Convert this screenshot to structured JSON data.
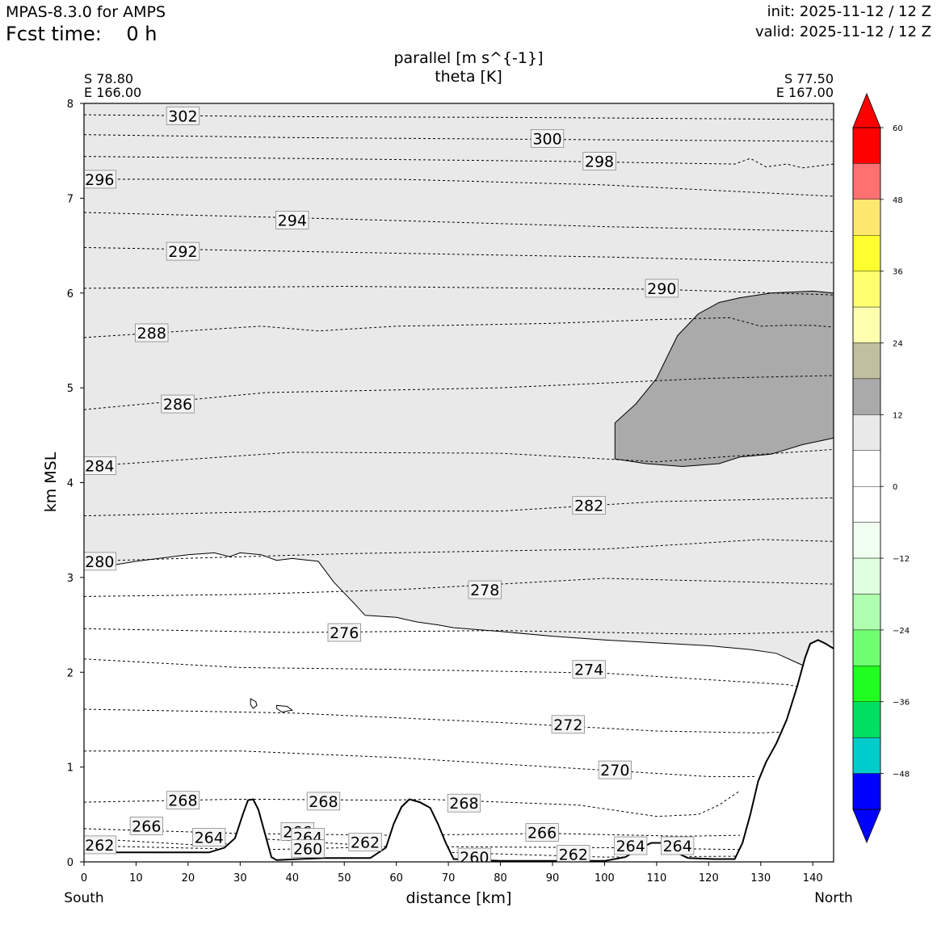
{
  "header": {
    "model": "MPAS-8.3.0 for AMPS",
    "fcst_label": "Fcst time:",
    "fcst_value": "0 h",
    "init": "init: 2025-11-12 / 12 Z",
    "valid": "valid: 2025-11-12 / 12 Z"
  },
  "titles": {
    "line1": "parallel [m s^{-1}]",
    "line2": "theta [K]"
  },
  "endpoints": {
    "left_lat": "S 78.80",
    "left_lon": "E 166.00",
    "right_lat": "S 77.50",
    "right_lon": "E 167.00",
    "left_dir": "South",
    "right_dir": "North"
  },
  "colors": {
    "shade_light": "#e9e9e9",
    "shade_dark": "#aaaaaa",
    "terrain_fill": "#ffffff"
  },
  "chart_data": {
    "type": "line",
    "xlabel": "distance [km]",
    "ylabel": "km MSL",
    "xlim": [
      0,
      144
    ],
    "ylim": [
      0,
      8
    ],
    "xticks": [
      0,
      10,
      20,
      30,
      40,
      50,
      60,
      70,
      80,
      90,
      100,
      110,
      120,
      130,
      140
    ],
    "yticks": [
      0,
      1,
      2,
      3,
      4,
      5,
      6,
      7,
      8
    ],
    "terrain_km": [
      [
        0,
        0.1
      ],
      [
        9,
        0.1
      ],
      [
        24,
        0.1
      ],
      [
        27,
        0.15
      ],
      [
        29,
        0.25
      ],
      [
        30.5,
        0.5
      ],
      [
        31.5,
        0.65
      ],
      [
        32.5,
        0.66
      ],
      [
        33.5,
        0.55
      ],
      [
        35,
        0.25
      ],
      [
        36,
        0.05
      ],
      [
        37,
        0.02
      ],
      [
        46,
        0.04
      ],
      [
        55,
        0.04
      ],
      [
        58,
        0.15
      ],
      [
        59.5,
        0.4
      ],
      [
        61,
        0.58
      ],
      [
        62.5,
        0.66
      ],
      [
        64.5,
        0.63
      ],
      [
        66.5,
        0.57
      ],
      [
        68,
        0.4
      ],
      [
        69.5,
        0.2
      ],
      [
        71,
        0.03
      ],
      [
        80,
        0.01
      ],
      [
        100,
        0.01
      ],
      [
        104,
        0.05
      ],
      [
        107,
        0.15
      ],
      [
        109,
        0.2
      ],
      [
        111,
        0.2
      ],
      [
        113,
        0.12
      ],
      [
        116,
        0.04
      ],
      [
        121,
        0.03
      ],
      [
        125,
        0.03
      ],
      [
        126.5,
        0.2
      ],
      [
        128,
        0.5
      ],
      [
        129.5,
        0.85
      ],
      [
        131,
        1.05
      ],
      [
        133,
        1.25
      ],
      [
        135,
        1.5
      ],
      [
        137,
        1.85
      ],
      [
        138.5,
        2.15
      ],
      [
        139.5,
        2.3
      ],
      [
        141,
        2.34
      ],
      [
        142.5,
        2.3
      ],
      [
        144,
        2.25
      ]
    ],
    "theta_contours": [
      {
        "value": 302,
        "points": [
          [
            0,
            7.88
          ],
          [
            40,
            7.86
          ],
          [
            90,
            7.85
          ],
          [
            144,
            7.83
          ]
        ]
      },
      {
        "value": 300,
        "points": [
          [
            0,
            7.67
          ],
          [
            40,
            7.64
          ],
          [
            90,
            7.62
          ],
          [
            144,
            7.6
          ]
        ]
      },
      {
        "value": 298,
        "points": [
          [
            0,
            7.44
          ],
          [
            40,
            7.42
          ],
          [
            90,
            7.39
          ],
          [
            125,
            7.36
          ],
          [
            128,
            7.42
          ],
          [
            131,
            7.33
          ],
          [
            135,
            7.36
          ],
          [
            138,
            7.32
          ],
          [
            144,
            7.36
          ]
        ]
      },
      {
        "value": 296,
        "points": [
          [
            0,
            7.2
          ],
          [
            60,
            7.2
          ],
          [
            100,
            7.14
          ],
          [
            144,
            7.02
          ]
        ]
      },
      {
        "value": 294,
        "points": [
          [
            0,
            6.85
          ],
          [
            50,
            6.78
          ],
          [
            100,
            6.7
          ],
          [
            144,
            6.65
          ]
        ]
      },
      {
        "value": 292,
        "points": [
          [
            0,
            6.48
          ],
          [
            50,
            6.43
          ],
          [
            100,
            6.38
          ],
          [
            144,
            6.32
          ]
        ]
      },
      {
        "value": 290,
        "points": [
          [
            0,
            6.05
          ],
          [
            50,
            6.07
          ],
          [
            110,
            6.04
          ],
          [
            144,
            5.98
          ]
        ]
      },
      {
        "value": 288,
        "points": [
          [
            0,
            5.53
          ],
          [
            25,
            5.62
          ],
          [
            34,
            5.65
          ],
          [
            45,
            5.6
          ],
          [
            60,
            5.65
          ],
          [
            70,
            5.66
          ],
          [
            90,
            5.68
          ],
          [
            110,
            5.72
          ],
          [
            124,
            5.74
          ],
          [
            130,
            5.65
          ],
          [
            135,
            5.66
          ],
          [
            140,
            5.66
          ],
          [
            144,
            5.64
          ]
        ]
      },
      {
        "value": 286,
        "points": [
          [
            0,
            4.77
          ],
          [
            35,
            4.95
          ],
          [
            80,
            5.0
          ],
          [
            120,
            5.1
          ],
          [
            144,
            5.13
          ]
        ]
      },
      {
        "value": 284,
        "points": [
          [
            0,
            4.17
          ],
          [
            40,
            4.32
          ],
          [
            80,
            4.31
          ],
          [
            110,
            4.22
          ],
          [
            125,
            4.28
          ],
          [
            144,
            4.35
          ]
        ]
      },
      {
        "value": 282,
        "points": [
          [
            0,
            3.65
          ],
          [
            40,
            3.7
          ],
          [
            80,
            3.7
          ],
          [
            110,
            3.8
          ],
          [
            144,
            3.84
          ]
        ]
      },
      {
        "value": 280,
        "points": [
          [
            0,
            3.17
          ],
          [
            50,
            3.25
          ],
          [
            100,
            3.3
          ],
          [
            130,
            3.4
          ],
          [
            144,
            3.38
          ]
        ]
      },
      {
        "value": 278,
        "points": [
          [
            0,
            2.8
          ],
          [
            30,
            2.82
          ],
          [
            60,
            2.87
          ],
          [
            100,
            2.99
          ],
          [
            144,
            2.93
          ]
        ]
      },
      {
        "value": 276,
        "points": [
          [
            0,
            2.46
          ],
          [
            40,
            2.42
          ],
          [
            80,
            2.44
          ],
          [
            120,
            2.4
          ],
          [
            144,
            2.43
          ]
        ]
      },
      {
        "value": 274,
        "points": [
          [
            0,
            2.14
          ],
          [
            30,
            2.05
          ],
          [
            60,
            2.03
          ],
          [
            100,
            1.99
          ],
          [
            135,
            1.87
          ],
          [
            140,
            1.82
          ]
        ]
      },
      {
        "value": 272,
        "points": [
          [
            0,
            1.61
          ],
          [
            40,
            1.57
          ],
          [
            80,
            1.47
          ],
          [
            110,
            1.38
          ],
          [
            130,
            1.36
          ],
          [
            134,
            1.37
          ]
        ]
      },
      {
        "value": 270,
        "points": [
          [
            0,
            1.17
          ],
          [
            30,
            1.17
          ],
          [
            60,
            1.1
          ],
          [
            90,
            1.0
          ],
          [
            120,
            0.9
          ],
          [
            129,
            0.9
          ]
        ]
      },
      {
        "value": 268,
        "points": [
          [
            0,
            0.63
          ],
          [
            29,
            0.66
          ],
          [
            34,
            0.66
          ],
          [
            58,
            0.65
          ],
          [
            66,
            0.66
          ],
          [
            95,
            0.6
          ],
          [
            110,
            0.48
          ],
          [
            118,
            0.5
          ],
          [
            122,
            0.6
          ],
          [
            126,
            0.75
          ]
        ]
      },
      {
        "value": 266,
        "points": [
          [
            0,
            0.35
          ],
          [
            30,
            0.3
          ],
          [
            60,
            0.28
          ],
          [
            90,
            0.3
          ],
          [
            115,
            0.27
          ],
          [
            126,
            0.28
          ]
        ]
      },
      {
        "value": 264,
        "points": [
          [
            0,
            0.25
          ],
          [
            24,
            0.17
          ],
          [
            35,
            0.24
          ],
          [
            58,
            0.16
          ],
          [
            70,
            0.16
          ],
          [
            100,
            0.15
          ],
          [
            126,
            0.13
          ]
        ]
      },
      {
        "value": 262,
        "points": [
          [
            0,
            0.17
          ],
          [
            25,
            0.14
          ],
          [
            36,
            0.13
          ],
          [
            58,
            0.16
          ],
          [
            70,
            0.1
          ],
          [
            100,
            0.05
          ],
          [
            126,
            0.06
          ]
        ]
      }
    ],
    "labels": [
      {
        "text": "302",
        "x": 19,
        "y": 7.87
      },
      {
        "text": "300",
        "x": 89,
        "y": 7.63
      },
      {
        "text": "298",
        "x": 99,
        "y": 7.39
      },
      {
        "text": "296",
        "x": 3,
        "y": 7.2
      },
      {
        "text": "294",
        "x": 40,
        "y": 6.77
      },
      {
        "text": "292",
        "x": 19,
        "y": 6.44
      },
      {
        "text": "290",
        "x": 111,
        "y": 6.05
      },
      {
        "text": "288",
        "x": 13,
        "y": 5.58
      },
      {
        "text": "286",
        "x": 18,
        "y": 4.83
      },
      {
        "text": "284",
        "x": 3,
        "y": 4.18
      },
      {
        "text": "282",
        "x": 97,
        "y": 3.76
      },
      {
        "text": "280",
        "x": 3,
        "y": 3.17
      },
      {
        "text": "278",
        "x": 77,
        "y": 2.87
      },
      {
        "text": "276",
        "x": 50,
        "y": 2.42
      },
      {
        "text": "274",
        "x": 97,
        "y": 2.03
      },
      {
        "text": "272",
        "x": 93,
        "y": 1.45
      },
      {
        "text": "270",
        "x": 102,
        "y": 0.97
      },
      {
        "text": "268",
        "x": 19,
        "y": 0.65
      },
      {
        "text": "268",
        "x": 46,
        "y": 0.64
      },
      {
        "text": "268",
        "x": 73,
        "y": 0.62
      },
      {
        "text": "266",
        "x": 12,
        "y": 0.38
      },
      {
        "text": "266",
        "x": 41,
        "y": 0.32
      },
      {
        "text": "266",
        "x": 88,
        "y": 0.31
      },
      {
        "text": "264",
        "x": 24,
        "y": 0.26
      },
      {
        "text": "264",
        "x": 43,
        "y": 0.26
      },
      {
        "text": "264",
        "x": 105,
        "y": 0.17
      },
      {
        "text": "264",
        "x": 114,
        "y": 0.17
      },
      {
        "text": "262",
        "x": 3,
        "y": 0.18
      },
      {
        "text": "262",
        "x": 54,
        "y": 0.21
      },
      {
        "text": "262",
        "x": 94,
        "y": 0.08
      },
      {
        "text": "260",
        "x": 43,
        "y": 0.14
      },
      {
        "text": "260",
        "x": 75,
        "y": 0.05
      }
    ],
    "shading": {
      "light_region_top_km": 8,
      "light_lower_boundary": [
        [
          0,
          3.08
        ],
        [
          10,
          3.17
        ],
        [
          20,
          3.24
        ],
        [
          25,
          3.26
        ],
        [
          28,
          3.22
        ],
        [
          30,
          3.26
        ],
        [
          34,
          3.24
        ],
        [
          37,
          3.18
        ],
        [
          40,
          3.2
        ],
        [
          45,
          3.17
        ],
        [
          48,
          2.95
        ],
        [
          52,
          2.72
        ],
        [
          54,
          2.6
        ],
        [
          60,
          2.58
        ],
        [
          64,
          2.53
        ],
        [
          68,
          2.5
        ],
        [
          71,
          2.47
        ],
        [
          80,
          2.43
        ],
        [
          90,
          2.38
        ],
        [
          100,
          2.34
        ],
        [
          110,
          2.31
        ],
        [
          120,
          2.28
        ],
        [
          128,
          2.24
        ],
        [
          133,
          2.2
        ],
        [
          137,
          2.1
        ],
        [
          139,
          2.05
        ],
        [
          141,
          2.15
        ],
        [
          142.5,
          2.3
        ]
      ],
      "dark_region": [
        [
          102,
          4.63
        ],
        [
          106,
          4.83
        ],
        [
          110,
          5.1
        ],
        [
          114,
          5.55
        ],
        [
          118,
          5.78
        ],
        [
          122,
          5.9
        ],
        [
          126,
          5.95
        ],
        [
          132,
          6.0
        ],
        [
          140,
          6.02
        ],
        [
          144,
          6.0
        ],
        [
          144,
          4.47
        ],
        [
          138,
          4.4
        ],
        [
          132,
          4.3
        ],
        [
          126,
          4.27
        ],
        [
          122,
          4.2
        ],
        [
          115,
          4.17
        ],
        [
          108,
          4.2
        ],
        [
          102,
          4.25
        ]
      ],
      "small_contours": [
        [
          [
            32,
            1.72
          ],
          [
            33,
            1.69
          ],
          [
            33.2,
            1.65
          ],
          [
            32.5,
            1.62
          ],
          [
            32,
            1.66
          ],
          [
            32,
            1.72
          ]
        ],
        [
          [
            37,
            1.65
          ],
          [
            39,
            1.64
          ],
          [
            40,
            1.6
          ],
          [
            38,
            1.58
          ],
          [
            37,
            1.62
          ],
          [
            37,
            1.65
          ]
        ]
      ]
    },
    "colorbar": {
      "ticks": [
        60,
        48,
        36,
        24,
        12,
        0,
        -12,
        -24,
        -36,
        -48
      ],
      "tick_labels": [
        "60",
        "48",
        "36",
        "24",
        "12",
        "0",
        "−12",
        "−24",
        "−36",
        "−48"
      ],
      "bins": [
        {
          "lo": 54,
          "hi": 60,
          "color": "#ff0000"
        },
        {
          "lo": 48,
          "hi": 54,
          "color": "#ff7070"
        },
        {
          "lo": 42,
          "hi": 48,
          "color": "#ffe870"
        },
        {
          "lo": 36,
          "hi": 42,
          "color": "#ffff30"
        },
        {
          "lo": 30,
          "hi": 36,
          "color": "#ffff70"
        },
        {
          "lo": 24,
          "hi": 30,
          "color": "#ffffb0"
        },
        {
          "lo": 18,
          "hi": 24,
          "color": "#c0c0a0"
        },
        {
          "lo": 12,
          "hi": 18,
          "color": "#aaaaaa"
        },
        {
          "lo": 6,
          "hi": 12,
          "color": "#e9e9e9"
        },
        {
          "lo": 0,
          "hi": 6,
          "color": "#ffffff"
        },
        {
          "lo": -6,
          "hi": 0,
          "color": "#ffffff"
        },
        {
          "lo": -12,
          "hi": -6,
          "color": "#f0fff0"
        },
        {
          "lo": -18,
          "hi": -12,
          "color": "#e0ffe0"
        },
        {
          "lo": -24,
          "hi": -18,
          "color": "#b0ffb0"
        },
        {
          "lo": -30,
          "hi": -24,
          "color": "#70ff70"
        },
        {
          "lo": -36,
          "hi": -30,
          "color": "#20ff20"
        },
        {
          "lo": -42,
          "hi": -36,
          "color": "#00e060"
        },
        {
          "lo": -48,
          "hi": -42,
          "color": "#00cccc"
        },
        {
          "lo": -54,
          "hi": -48,
          "color": "#0000ff"
        }
      ],
      "over_color": "#ff0000",
      "under_color": "#0000ff"
    }
  }
}
